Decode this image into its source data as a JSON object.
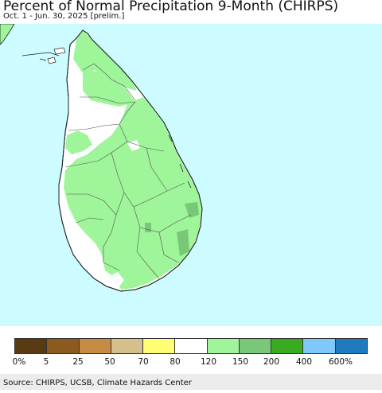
{
  "title": "Percent of Normal Precipitation 9-Month (CHIRPS)",
  "subtitle": "Oct. 1 - Jun. 30, 2025 [prelim.]",
  "colors": {
    "ocean": "#ccfcff",
    "land_normal": "#ffffff",
    "wet_120_150": "#9ff59a",
    "wet_150_200": "#78c878",
    "border": "#222222"
  },
  "legend": {
    "colors": [
      "#5a3a12",
      "#8b5a1e",
      "#c68c44",
      "#d4c08a",
      "#fffe74",
      "#ffffff",
      "#9ff59a",
      "#78c878",
      "#3aaa20",
      "#80c8fa",
      "#1e7bc0"
    ],
    "labels": [
      "0%",
      "5",
      "25",
      "50",
      "70",
      "80",
      "120",
      "150",
      "200",
      "400",
      "600%"
    ]
  },
  "source": "Source: CHIRPS, UCSB, Climate Hazards Center"
}
